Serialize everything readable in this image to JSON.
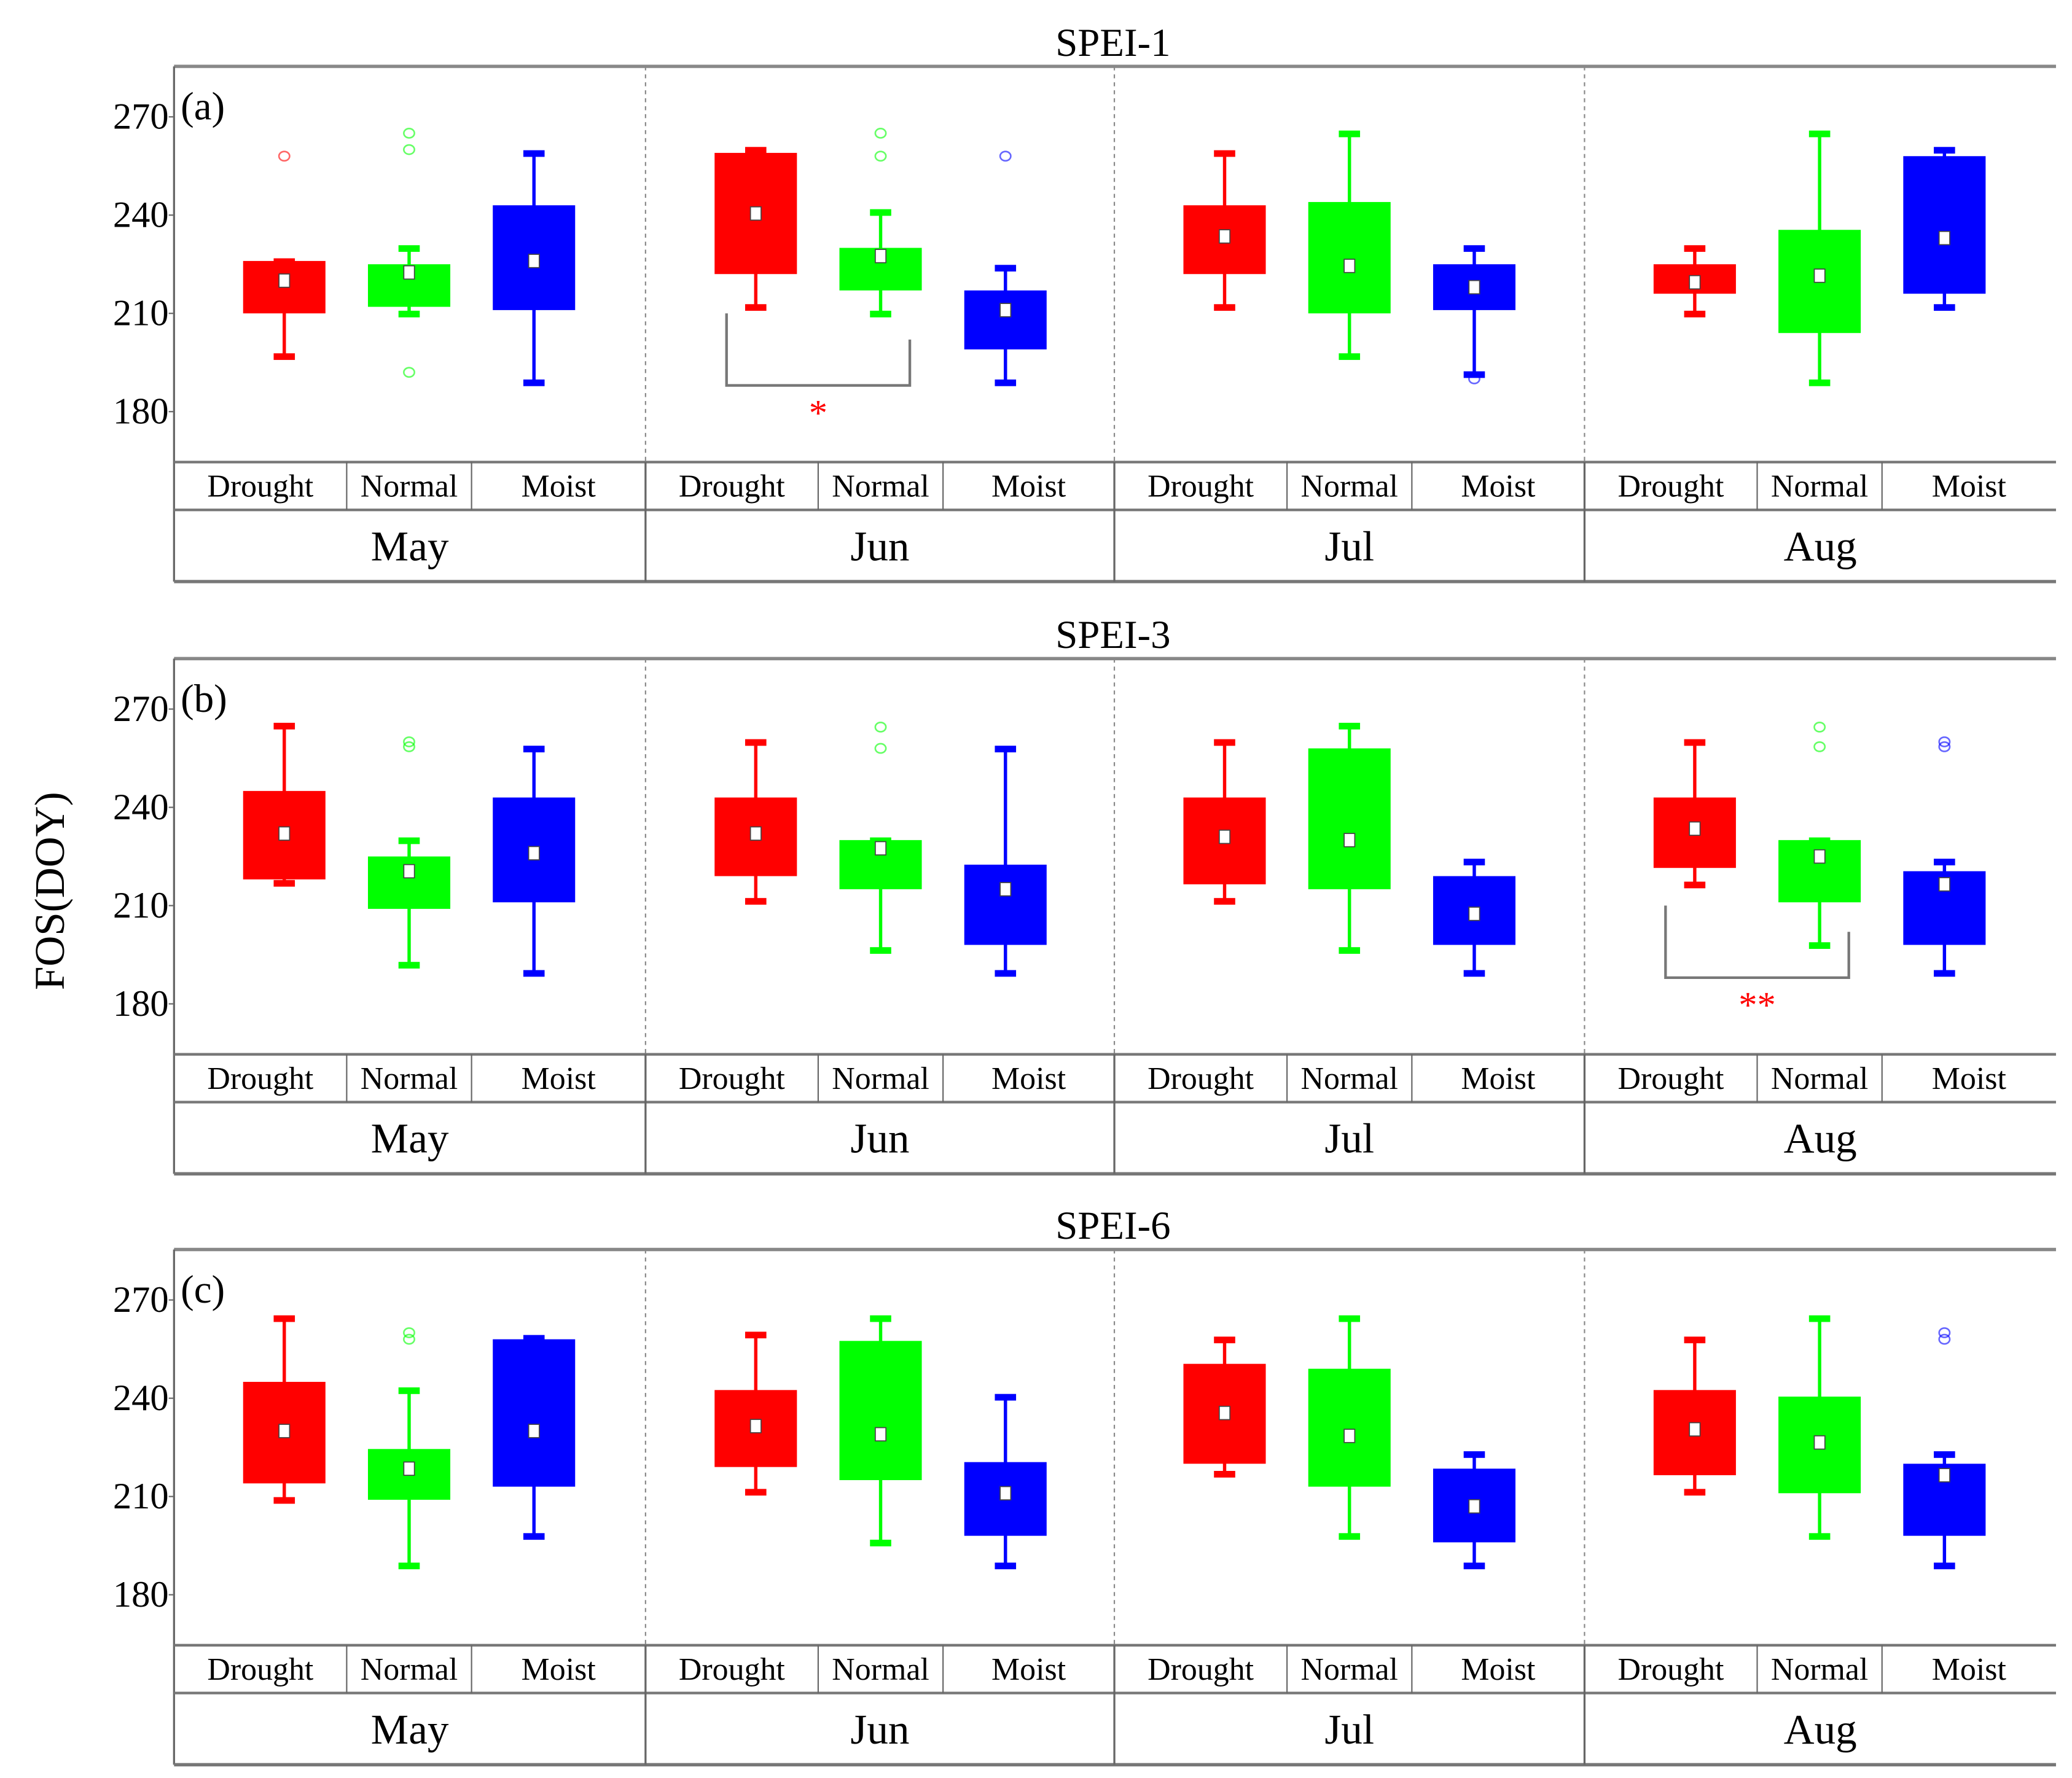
{
  "chart_data": [
    {
      "type": "box",
      "title": "SPEI-1",
      "panel_label": "(a)",
      "ylabel": "",
      "yticks": [
        180,
        210,
        240,
        270
      ],
      "ylim": [
        164.6,
        285.4
      ],
      "months": [
        "May",
        "Jun",
        "Jul",
        "Aug"
      ],
      "categories": [
        "Drought",
        "Normal",
        "Moist"
      ],
      "colors": {
        "Drought": "#ff0000",
        "Normal": "#00ff00",
        "Moist": "#0000ff"
      },
      "boxes": [
        [
          {
            "low": 197,
            "q1": 210,
            "median": 220,
            "q3": 226,
            "high": 226,
            "outliers": [
              258
            ]
          },
          {
            "low": 210,
            "q1": 212,
            "median": 222.5,
            "q3": 225,
            "high": 230,
            "outliers": [
              265,
              260,
              192
            ]
          },
          {
            "low": 189,
            "q1": 211,
            "median": 226,
            "q3": 243,
            "high": 259,
            "outliers": []
          }
        ],
        [
          {
            "low": 212,
            "q1": 222,
            "median": 240.5,
            "q3": 259,
            "high": 260,
            "outliers": []
          },
          {
            "low": 210,
            "q1": 217,
            "median": 227.5,
            "q3": 230,
            "high": 241,
            "outliers": [
              265,
              258
            ]
          },
          {
            "low": 189,
            "q1": 199,
            "median": 211,
            "q3": 217,
            "high": 224,
            "outliers": [
              258
            ]
          }
        ],
        [
          {
            "low": 212,
            "q1": 222,
            "median": 233.5,
            "q3": 243,
            "high": 259,
            "outliers": []
          },
          {
            "low": 197,
            "q1": 210,
            "median": 224.5,
            "q3": 244,
            "high": 265,
            "outliers": []
          },
          {
            "low": 191.5,
            "q1": 211,
            "median": 218,
            "q3": 225,
            "high": 230,
            "outliers": [
              190
            ]
          }
        ],
        [
          {
            "low": 210,
            "q1": 216,
            "median": 219.5,
            "q3": 225,
            "high": 230,
            "outliers": []
          },
          {
            "low": 189,
            "q1": 204,
            "median": 221.5,
            "q3": 235.5,
            "high": 265,
            "outliers": []
          },
          {
            "low": 212,
            "q1": 216,
            "median": 233,
            "q3": 258,
            "high": 260,
            "outliers": []
          }
        ]
      ],
      "significance": [
        {
          "month": "Jun",
          "from": "Drought",
          "to": "Normal",
          "label": "*"
        }
      ]
    },
    {
      "type": "box",
      "title": "SPEI-3",
      "panel_label": "(b)",
      "ylabel": "FOS(DOY)",
      "yticks": [
        180,
        210,
        240,
        270
      ],
      "ylim": [
        164.6,
        285.4
      ],
      "months": [
        "May",
        "Jun",
        "Jul",
        "Aug"
      ],
      "categories": [
        "Drought",
        "Normal",
        "Moist"
      ],
      "colors": {
        "Drought": "#ff0000",
        "Normal": "#00ff00",
        "Moist": "#0000ff"
      },
      "boxes": [
        [
          {
            "low": 217,
            "q1": 218,
            "median": 232,
            "q3": 245,
            "high": 265,
            "outliers": []
          },
          {
            "low": 192,
            "q1": 209,
            "median": 220.5,
            "q3": 225,
            "high": 230,
            "outliers": [
              260,
              258.5
            ]
          },
          {
            "low": 189.5,
            "q1": 211,
            "median": 226,
            "q3": 243,
            "high": 258,
            "outliers": []
          }
        ],
        [
          {
            "low": 211.5,
            "q1": 219,
            "median": 232,
            "q3": 243,
            "high": 260,
            "outliers": []
          },
          {
            "low": 196.5,
            "q1": 215,
            "median": 227.5,
            "q3": 230,
            "high": 230,
            "outliers": [
              264.5,
              258
            ]
          },
          {
            "low": 189.5,
            "q1": 198,
            "median": 215,
            "q3": 222.5,
            "high": 258,
            "outliers": []
          }
        ],
        [
          {
            "low": 211.5,
            "q1": 216.5,
            "median": 231,
            "q3": 243,
            "high": 260,
            "outliers": []
          },
          {
            "low": 196.5,
            "q1": 215,
            "median": 230,
            "q3": 258,
            "high": 265,
            "outliers": []
          },
          {
            "low": 189.5,
            "q1": 198,
            "median": 207.5,
            "q3": 219,
            "high": 223.5,
            "outliers": []
          }
        ],
        [
          {
            "low": 216.5,
            "q1": 221.5,
            "median": 233.5,
            "q3": 243,
            "high": 260,
            "outliers": []
          },
          {
            "low": 198,
            "q1": 211,
            "median": 225,
            "q3": 230,
            "high": 230,
            "outliers": [
              264.5,
              258.5
            ]
          },
          {
            "low": 189.5,
            "q1": 198,
            "median": 216.5,
            "q3": 220.5,
            "high": 223.5,
            "outliers": [
              260,
              258.5
            ]
          }
        ]
      ],
      "significance": [
        {
          "month": "Aug",
          "from": "Drought",
          "to": "Normal",
          "label": "**"
        }
      ]
    },
    {
      "type": "box",
      "title": "SPEI-6",
      "panel_label": "(c)",
      "ylabel": "",
      "yticks": [
        180,
        210,
        240,
        270
      ],
      "ylim": [
        164.6,
        285.4
      ],
      "months": [
        "May",
        "Jun",
        "Jul",
        "Aug"
      ],
      "categories": [
        "Drought",
        "Normal",
        "Moist"
      ],
      "colors": {
        "Drought": "#ff0000",
        "Normal": "#00ff00",
        "Moist": "#0000ff"
      },
      "boxes": [
        [
          {
            "low": 209,
            "q1": 214,
            "median": 230,
            "q3": 245,
            "high": 264.5,
            "outliers": []
          },
          {
            "low": 189,
            "q1": 209,
            "median": 218.5,
            "q3": 224.5,
            "high": 242.5,
            "outliers": [
              260,
              258
            ]
          },
          {
            "low": 198,
            "q1": 213,
            "median": 230,
            "q3": 258,
            "high": 258.5,
            "outliers": []
          }
        ],
        [
          {
            "low": 211.5,
            "q1": 219,
            "median": 231.5,
            "q3": 242.5,
            "high": 259.5,
            "outliers": []
          },
          {
            "low": 196,
            "q1": 215,
            "median": 229,
            "q3": 257.5,
            "high": 264.5,
            "outliers": []
          },
          {
            "low": 189,
            "q1": 198,
            "median": 211,
            "q3": 220.5,
            "high": 240.5,
            "outliers": []
          }
        ],
        [
          {
            "low": 217,
            "q1": 220,
            "median": 235.5,
            "q3": 250.5,
            "high": 258,
            "outliers": []
          },
          {
            "low": 198,
            "q1": 213,
            "median": 228.5,
            "q3": 249,
            "high": 264.5,
            "outliers": []
          },
          {
            "low": 189,
            "q1": 196,
            "median": 207,
            "q3": 218.5,
            "high": 223,
            "outliers": []
          }
        ],
        [
          {
            "low": 211.5,
            "q1": 216.5,
            "median": 230.5,
            "q3": 242.5,
            "high": 258,
            "outliers": []
          },
          {
            "low": 198,
            "q1": 211,
            "median": 226.5,
            "q3": 240.5,
            "high": 264.5,
            "outliers": []
          },
          {
            "low": 189,
            "q1": 198,
            "median": 216.5,
            "q3": 220,
            "high": 223,
            "outliers": [
              260,
              258
            ]
          }
        ]
      ],
      "significance": []
    }
  ]
}
